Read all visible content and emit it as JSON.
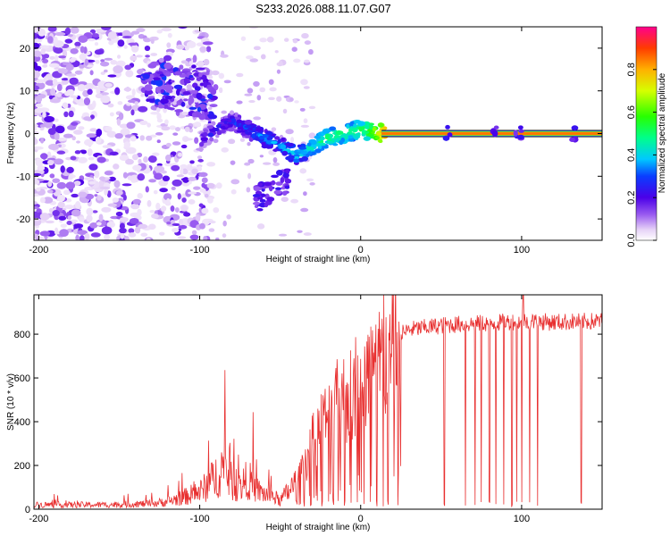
{
  "title": "S233.2026.088.11.07.G07",
  "chart_data": [
    {
      "type": "heatmap",
      "name": "spectrogram",
      "xlabel": "Height of straight line (km)",
      "ylabel": "Frequency (Hz)",
      "xlim": [
        -203,
        150
      ],
      "ylim": [
        -25,
        25
      ],
      "xticks": [
        -200,
        -100,
        0,
        100
      ],
      "yticks": [
        -20,
        -10,
        0,
        10,
        20
      ],
      "colorbar": {
        "label": "Normalized spectral amplitude",
        "range": [
          0,
          1
        ],
        "ticks": [
          0.0,
          0.2,
          0.4,
          0.6,
          0.8
        ],
        "tick_labels": [
          "0.0",
          "0.2",
          "0.4",
          "0.6",
          "0.8"
        ]
      },
      "trace": {
        "description": "dominant frequency ridge",
        "x": [
          -100,
          -90,
          -80,
          -70,
          -60,
          -50,
          -40,
          -30,
          -20,
          -10,
          0,
          10,
          15,
          50,
          100,
          150
        ],
        "y": [
          -2,
          1,
          3,
          1,
          -1,
          -3,
          -5,
          -3,
          -1,
          0,
          1,
          0,
          0,
          0,
          0,
          0
        ],
        "amplitude": [
          0.2,
          0.25,
          0.25,
          0.3,
          0.35,
          0.35,
          0.4,
          0.45,
          0.5,
          0.5,
          0.5,
          0.7,
          0.85,
          0.85,
          0.85,
          0.85
        ]
      }
    },
    {
      "type": "line",
      "name": "snr",
      "xlabel": "Height of straight line (km)",
      "ylabel": "SNR (10 * v/v)",
      "xlim": [
        -203,
        150
      ],
      "ylim": [
        0,
        980
      ],
      "xticks": [
        -200,
        -100,
        0,
        100
      ],
      "yticks": [
        0,
        200,
        400,
        600,
        800
      ],
      "color": "#e83030",
      "envelope": {
        "x": [
          -203,
          -160,
          -130,
          -120,
          -110,
          -100,
          -95,
          -90,
          -85,
          -80,
          -75,
          -70,
          -65,
          -60,
          -55,
          -50,
          -45,
          -40,
          -35,
          -30,
          -25,
          -20,
          -15,
          -10,
          -5,
          0,
          5,
          10,
          15,
          20,
          25,
          30,
          40,
          50,
          60,
          80,
          100,
          120,
          150
        ],
        "y": [
          20,
          20,
          25,
          35,
          55,
          80,
          110,
          150,
          200,
          120,
          100,
          140,
          90,
          70,
          60,
          40,
          80,
          120,
          200,
          300,
          380,
          420,
          470,
          520,
          560,
          590,
          620,
          650,
          680,
          720,
          800,
          820,
          830,
          840,
          845,
          850,
          860,
          855,
          860
        ]
      },
      "dips_x": [
        -40,
        -35,
        -31,
        -27,
        -24,
        -20,
        -17,
        -14,
        -10,
        -6,
        -2,
        2,
        6,
        10,
        14,
        17,
        23,
        52,
        65,
        71,
        75,
        80,
        84,
        89,
        94,
        97,
        100,
        105,
        110,
        137
      ],
      "spike": {
        "x": 101,
        "y": 980
      }
    }
  ]
}
